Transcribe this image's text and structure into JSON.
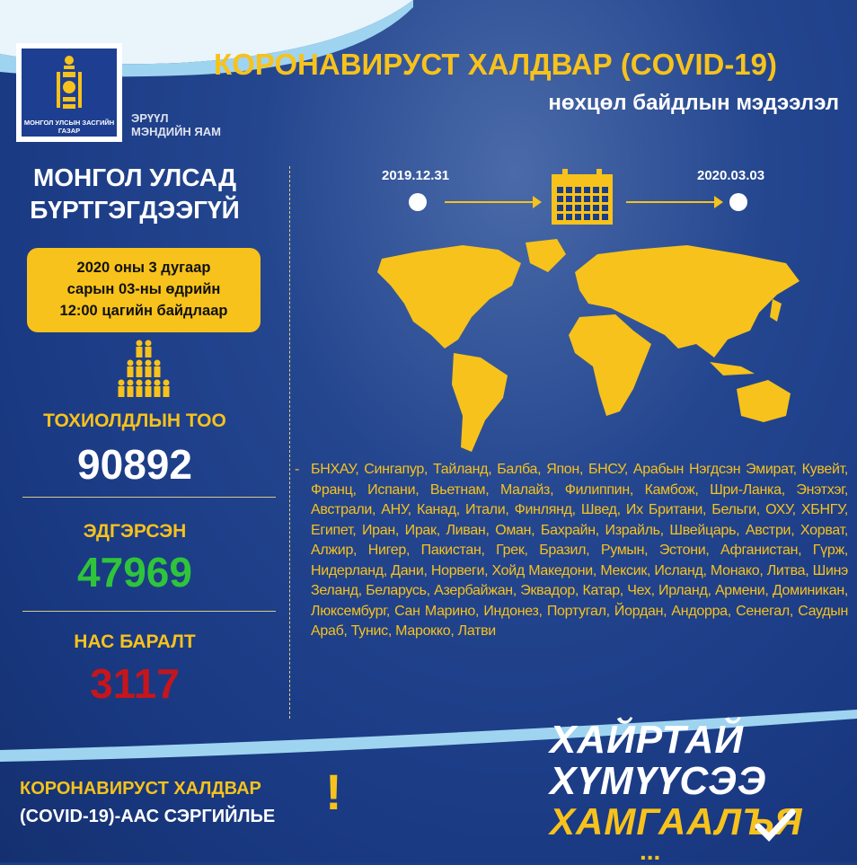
{
  "header": {
    "title": "КОРОНАВИРУСТ ХАЛДВАР (COVID-19)",
    "subtitle": "нөхцөл байдлын мэдээлэл"
  },
  "logo": {
    "text": "МОНГОЛ УЛСЫН ЗАСГИЙН ГАЗАР",
    "ministry_line1": "ЭРҮҮЛ",
    "ministry_line2": "МЭНДИЙН ЯАМ"
  },
  "left": {
    "heading_line1": "МОНГОЛ УЛСАД",
    "heading_line2": "БҮРТГЭГДЭЭГҮЙ",
    "as_of_line1": "2020 оны 3 дугаар",
    "as_of_line2": "сарын 03-ны өдрийн",
    "as_of_line3": "12:00 цагийн байдлаар",
    "cases_label": "ТОХИОЛДЛЫН ТОО",
    "cases": "90892",
    "recovered_label": "ЭДГЭРСЭН",
    "recovered": "47969",
    "deaths_label": "НАС БАРАЛТ",
    "deaths": "3117"
  },
  "timeline": {
    "start": "2019.12.31",
    "end": "2020.03.03"
  },
  "countries": {
    "dash": "-",
    "text": "БНХАУ, Сингапур, Тайланд, Балба, Япон, БНСУ, Арабын Нэгдсэн Эмират, Кувейт, Франц, Испани, Вьетнам, Малайз, Филиппин, Камбож, Шри-Ланка, Энэтхэг, Австрали, АНУ, Канад, Итали, Финлянд, Швед, Их Британи, Бельги, ОХУ, ХБНГУ, Египет, Иран, Ирак, Ливан, Оман, Бахрайн, Израйль, Швейцарь, Австри, Хорват, Алжир, Нигер, Пакистан, Грек, Бразил, Румын, Эстони, Афганистан, Гүрж, Нидерланд, Дани, Норвеги, Хойд Македони, Мексик, Исланд, Монако, Литва, Шинэ Зеланд, Беларусь, Азербайжан, Эквадор, Катар, Чех, Ирланд, Армени, Доминикан, Люксембург, Сан Марино, Индонез, Португал, Йордан, Андорра, Сенегал, Саудын Араб, Тунис, Марокко, Латви"
  },
  "footer": {
    "left_line1": "КОРОНАВИРУСТ ХАЛДВАР",
    "left_line2": "(COVID-19)-ААС СЭРГИЙЛЬЕ",
    "exclamation": "!",
    "slogan1": "ХАЙРТАЙ",
    "slogan2": "ХҮМҮҮСЭЭ",
    "slogan3": "ХАМГААЛЪЯ",
    "ellipsis": "..."
  },
  "colors": {
    "background": "#1b3c86",
    "accent": "#f7c21b",
    "recovered": "#2fc43a",
    "deaths": "#c4161c"
  }
}
